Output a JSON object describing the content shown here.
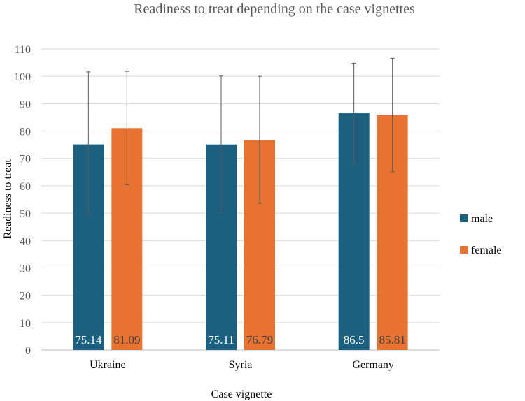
{
  "chart_data": {
    "type": "bar",
    "title": "Readiness to treat depending on the case vignettes",
    "xlabel": "Case vignette",
    "ylabel": "Readiness to treat",
    "ylim": [
      0,
      110
    ],
    "yticks": [
      0,
      10,
      20,
      30,
      40,
      50,
      60,
      70,
      80,
      90,
      100,
      110
    ],
    "grid": true,
    "legend_position": "right",
    "categories": [
      "Ukraine",
      "Syria",
      "Germany"
    ],
    "series": [
      {
        "name": "male",
        "color": "#1b607f",
        "values": [
          75.14,
          75.11,
          86.5
        ],
        "labels": [
          "75.14",
          "75.11",
          "86.5"
        ],
        "error_low": [
          49.1,
          50.3,
          68.0
        ],
        "error_high": [
          101.6,
          100.1,
          104.8
        ]
      },
      {
        "name": "female",
        "color": "#e87330",
        "values": [
          81.09,
          76.79,
          85.81
        ],
        "labels": [
          "81.09",
          "76.79",
          "85.81"
        ],
        "error_low": [
          60.4,
          53.6,
          65.1
        ],
        "error_high": [
          101.8,
          100.0,
          106.6
        ]
      }
    ]
  }
}
